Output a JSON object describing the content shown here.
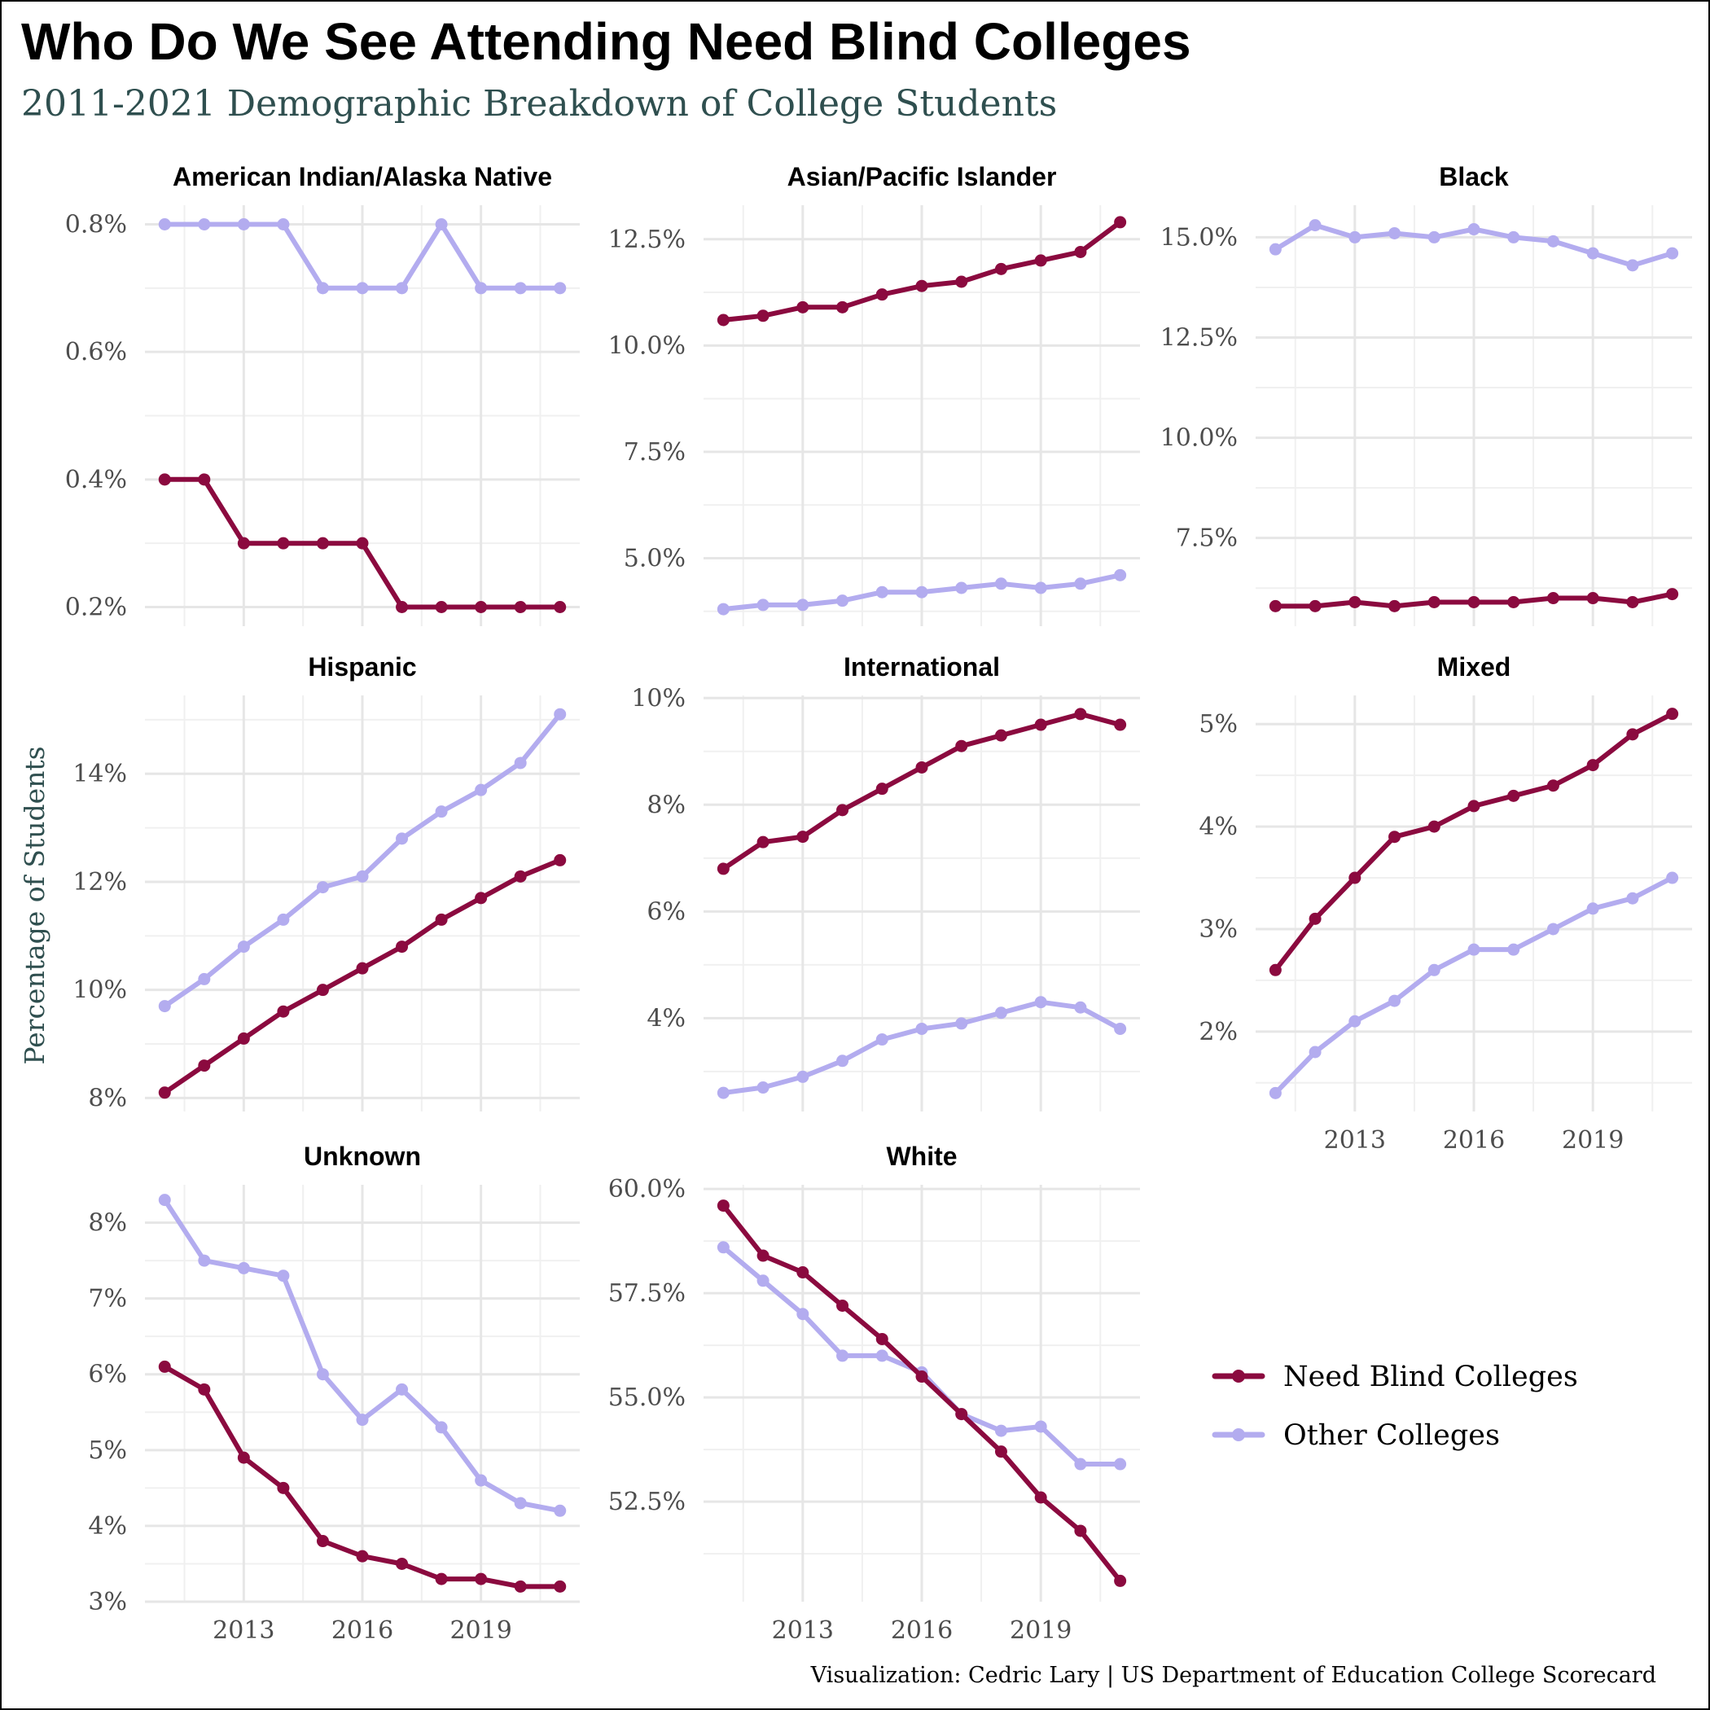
{
  "title": "Who Do We See Attending Need Blind Colleges",
  "subtitle": "2011-2021 Demographic Breakdown of College Students",
  "caption": "Visualization: Cedric Lary | US Department of Education College Scorecard",
  "chart_data": {
    "type": "line",
    "ylabel": "Percentage of Students",
    "x": [
      2011,
      2012,
      2013,
      2014,
      2015,
      2016,
      2017,
      2018,
      2019,
      2020,
      2021
    ],
    "x_ticks": [
      2013,
      2016,
      2019
    ],
    "x_tick_labels": [
      "2013",
      "2016",
      "2019"
    ],
    "legend": {
      "position": "right",
      "entries": [
        {
          "name": "Need Blind Colleges",
          "color": "#8b0a3f"
        },
        {
          "name": "Other Colleges",
          "color": "#b3acef"
        }
      ]
    },
    "grid": true,
    "panels": [
      {
        "title": "American Indian/Alaska Native",
        "ylim": [
          0.17,
          0.83
        ],
        "y_ticks": [
          0.2,
          0.4,
          0.6,
          0.8
        ],
        "y_tick_labels": [
          "0.2%",
          "0.4%",
          "0.6%",
          "0.8%"
        ],
        "series": [
          {
            "name": "Need Blind Colleges",
            "values": [
              0.4,
              0.4,
              0.3,
              0.3,
              0.3,
              0.3,
              0.2,
              0.2,
              0.2,
              0.2,
              0.2
            ]
          },
          {
            "name": "Other Colleges",
            "values": [
              0.8,
              0.8,
              0.8,
              0.8,
              0.7,
              0.7,
              0.7,
              0.8,
              0.7,
              0.7,
              0.7
            ]
          }
        ]
      },
      {
        "title": "Asian/Pacific Islander",
        "ylim": [
          3.4,
          13.3
        ],
        "y_ticks": [
          5.0,
          7.5,
          10.0,
          12.5
        ],
        "y_tick_labels": [
          "5.0%",
          "7.5%",
          "10.0%",
          "12.5%"
        ],
        "series": [
          {
            "name": "Need Blind Colleges",
            "values": [
              10.6,
              10.7,
              10.9,
              10.9,
              11.2,
              11.4,
              11.5,
              11.8,
              12.0,
              12.2,
              12.9
            ]
          },
          {
            "name": "Other Colleges",
            "values": [
              3.8,
              3.9,
              3.9,
              4.0,
              4.2,
              4.2,
              4.3,
              4.4,
              4.3,
              4.4,
              4.6
            ]
          }
        ]
      },
      {
        "title": "Black",
        "ylim": [
          5.3,
          15.8
        ],
        "y_ticks": [
          7.5,
          10.0,
          12.5,
          15.0
        ],
        "y_tick_labels": [
          "7.5%",
          "10.0%",
          "12.5%",
          "15.0%"
        ],
        "series": [
          {
            "name": "Need Blind Colleges",
            "values": [
              5.8,
              5.8,
              5.9,
              5.8,
              5.9,
              5.9,
              5.9,
              6.0,
              6.0,
              5.9,
              6.1
            ]
          },
          {
            "name": "Other Colleges",
            "values": [
              14.7,
              15.3,
              15.0,
              15.1,
              15.0,
              15.2,
              15.0,
              14.9,
              14.6,
              14.3,
              14.6
            ]
          }
        ]
      },
      {
        "title": "Hispanic",
        "ylim": [
          7.75,
          15.45
        ],
        "y_ticks": [
          8,
          10,
          12,
          14
        ],
        "y_tick_labels": [
          "8%",
          "10%",
          "12%",
          "14%"
        ],
        "series": [
          {
            "name": "Need Blind Colleges",
            "values": [
              8.1,
              8.6,
              9.1,
              9.6,
              10.0,
              10.4,
              10.8,
              11.3,
              11.7,
              12.1,
              12.4
            ]
          },
          {
            "name": "Other Colleges",
            "values": [
              9.7,
              10.2,
              10.8,
              11.3,
              11.9,
              12.1,
              12.8,
              13.3,
              13.7,
              14.2,
              15.1
            ]
          }
        ]
      },
      {
        "title": "International",
        "ylim": [
          2.25,
          10.05
        ],
        "y_ticks": [
          4,
          6,
          8,
          10
        ],
        "y_tick_labels": [
          "4%",
          "6%",
          "8%",
          "10%"
        ],
        "series": [
          {
            "name": "Need Blind Colleges",
            "values": [
              6.8,
              7.3,
              7.4,
              7.9,
              8.3,
              8.7,
              9.1,
              9.3,
              9.5,
              9.7,
              9.5
            ]
          },
          {
            "name": "Other Colleges",
            "values": [
              2.6,
              2.7,
              2.9,
              3.2,
              3.6,
              3.8,
              3.9,
              4.1,
              4.3,
              4.2,
              3.8
            ]
          }
        ]
      },
      {
        "title": "Mixed",
        "ylim": [
          1.22,
          5.28
        ],
        "y_ticks": [
          2,
          3,
          4,
          5
        ],
        "y_tick_labels": [
          "2%",
          "3%",
          "4%",
          "5%"
        ],
        "series": [
          {
            "name": "Need Blind Colleges",
            "values": [
              2.6,
              3.1,
              3.5,
              3.9,
              4.0,
              4.2,
              4.3,
              4.4,
              4.6,
              4.9,
              5.1
            ]
          },
          {
            "name": "Other Colleges",
            "values": [
              1.4,
              1.8,
              2.1,
              2.3,
              2.6,
              2.8,
              2.8,
              3.0,
              3.2,
              3.3,
              3.5
            ]
          }
        ]
      },
      {
        "title": "Unknown",
        "ylim": [
          3.0,
          8.5
        ],
        "y_ticks": [
          3,
          4,
          5,
          6,
          7,
          8
        ],
        "y_tick_labels": [
          "3%",
          "4%",
          "5%",
          "6%",
          "7%",
          "8%"
        ],
        "series": [
          {
            "name": "Need Blind Colleges",
            "values": [
              6.1,
              5.8,
              4.9,
              4.5,
              3.8,
              3.6,
              3.5,
              3.3,
              3.3,
              3.2,
              3.2
            ]
          },
          {
            "name": "Other Colleges",
            "values": [
              8.3,
              7.5,
              7.4,
              7.3,
              6.0,
              5.4,
              5.8,
              5.3,
              4.6,
              4.3,
              4.2
            ]
          }
        ]
      },
      {
        "title": "White",
        "ylim": [
          50.1,
          60.1
        ],
        "y_ticks": [
          52.5,
          55.0,
          57.5,
          60.0
        ],
        "y_tick_labels": [
          "52.5%",
          "55.0%",
          "57.5%",
          "60.0%"
        ],
        "series": [
          {
            "name": "Need Blind Colleges",
            "values": [
              59.6,
              58.4,
              58.0,
              57.2,
              56.4,
              55.5,
              54.6,
              53.7,
              52.6,
              51.8,
              50.6
            ]
          },
          {
            "name": "Other Colleges",
            "values": [
              58.6,
              57.8,
              57.0,
              56.0,
              56.0,
              55.6,
              54.6,
              54.2,
              54.3,
              53.4,
              53.4
            ]
          }
        ]
      }
    ]
  }
}
